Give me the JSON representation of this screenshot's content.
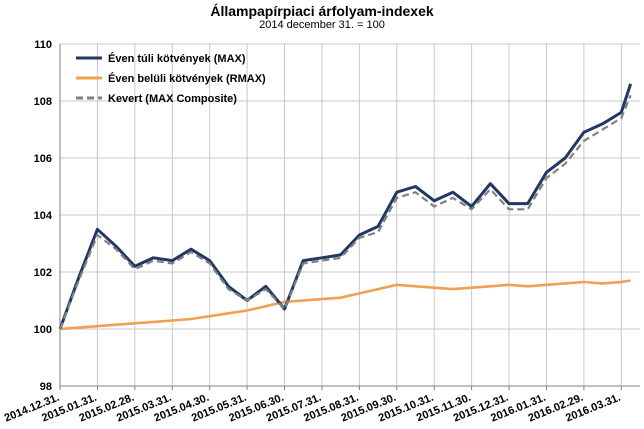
{
  "chart_data": {
    "type": "line",
    "title": "Állampapírpiaci árfolyam-indexek",
    "subtitle": "2014 december 31. = 100",
    "xlabel": "",
    "ylabel": "",
    "ylim": [
      98,
      110
    ],
    "yticks": [
      98,
      100,
      102,
      104,
      106,
      108,
      110
    ],
    "xticks": [
      "2014.12.31.",
      "2015.01.31.",
      "2015.02.28.",
      "2015.03.31.",
      "2015.04.30.",
      "2015.05.31.",
      "2015.06.30.",
      "2015.07.31.",
      "2015.08.31.",
      "2015.09.30.",
      "2015.10.31.",
      "2015.11.30.",
      "2015.12.31.",
      "2016.01.31.",
      "2016.02.29.",
      "2016.03.31."
    ],
    "grid": true,
    "legend_position": "top-left",
    "x": [
      "2014.12.31.",
      "2015.01.15.",
      "2015.01.31.",
      "2015.02.15.",
      "2015.02.28.",
      "2015.03.15.",
      "2015.03.31.",
      "2015.04.15.",
      "2015.04.30.",
      "2015.05.15.",
      "2015.05.31.",
      "2015.06.15.",
      "2015.06.30.",
      "2015.07.15.",
      "2015.07.31.",
      "2015.08.15.",
      "2015.08.31.",
      "2015.09.15.",
      "2015.09.30.",
      "2015.10.15.",
      "2015.10.31.",
      "2015.11.15.",
      "2015.11.30.",
      "2015.12.15.",
      "2015.12.31.",
      "2016.01.15.",
      "2016.01.31.",
      "2016.02.15.",
      "2016.02.29.",
      "2016.03.15.",
      "2016.03.31.",
      "2016.04.07."
    ],
    "series": [
      {
        "name": "Éven túli kötvények (MAX)",
        "color": "#1f3864",
        "style": "solid",
        "values": [
          100.0,
          101.8,
          103.5,
          102.9,
          102.2,
          102.5,
          102.4,
          102.8,
          102.4,
          101.5,
          101.0,
          101.5,
          100.7,
          102.4,
          102.5,
          102.6,
          103.3,
          103.6,
          104.8,
          105.0,
          104.5,
          104.8,
          104.3,
          105.1,
          104.4,
          104.4,
          105.5,
          106.0,
          106.9,
          107.2,
          107.6,
          108.6
        ]
      },
      {
        "name": "Éven belüli kötvények (RMAX)",
        "color": "#f0a050",
        "style": "solid",
        "values": [
          100.0,
          100.05,
          100.1,
          100.15,
          100.2,
          100.25,
          100.3,
          100.35,
          100.45,
          100.55,
          100.65,
          100.8,
          100.95,
          101.0,
          101.05,
          101.1,
          101.25,
          101.4,
          101.55,
          101.5,
          101.45,
          101.4,
          101.45,
          101.5,
          101.55,
          101.5,
          101.55,
          101.6,
          101.65,
          101.6,
          101.65,
          101.7
        ]
      },
      {
        "name": "Kevert (MAX Composite)",
        "color": "#808080",
        "style": "dashed",
        "values": [
          100.0,
          101.7,
          103.3,
          102.8,
          102.1,
          102.4,
          102.3,
          102.7,
          102.3,
          101.4,
          101.0,
          101.4,
          100.7,
          102.3,
          102.4,
          102.5,
          103.2,
          103.4,
          104.6,
          104.8,
          104.3,
          104.6,
          104.2,
          104.9,
          104.2,
          104.2,
          105.3,
          105.8,
          106.6,
          107.0,
          107.4,
          108.2
        ]
      }
    ]
  }
}
